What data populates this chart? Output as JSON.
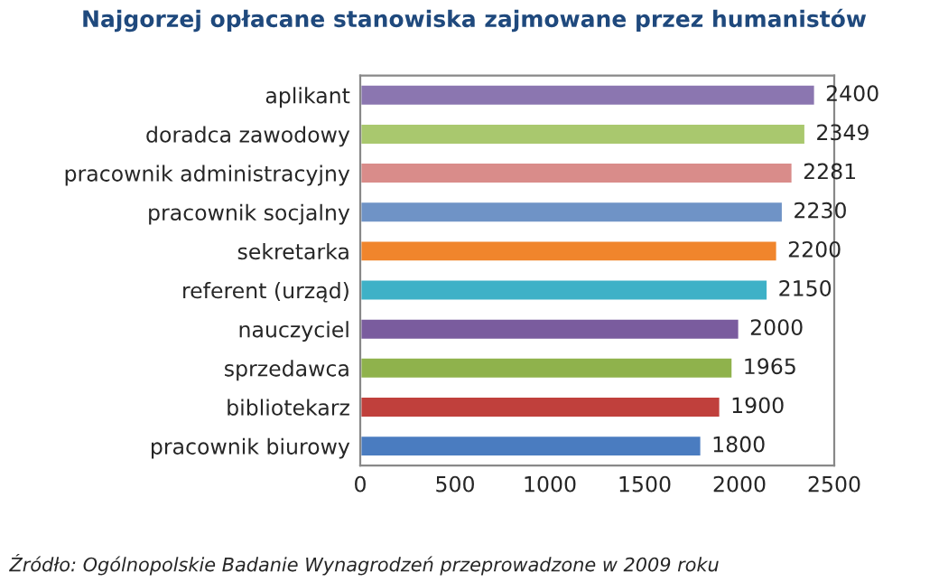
{
  "chart_data": {
    "type": "bar",
    "orientation": "horizontal",
    "title": "Najgorzej opłacane stanowiska zajmowane przez humanistów",
    "categories": [
      "aplikant",
      "doradca zawodowy",
      "pracownik administracyjny",
      "pracownik socjalny",
      "sekretarka",
      "referent (urząd)",
      "nauczyciel",
      "sprzedawca",
      "bibliotekarz",
      "pracownik biurowy"
    ],
    "values": [
      2400,
      2349,
      2281,
      2230,
      2200,
      2150,
      2000,
      1965,
      1900,
      1800
    ],
    "colors": [
      "#8b76b0",
      "#a9c86e",
      "#d98c8a",
      "#6f93c6",
      "#f0852c",
      "#3eb1c7",
      "#7a5c9e",
      "#8fb24c",
      "#c0403c",
      "#4a7cc0"
    ],
    "xlim": [
      0,
      2500
    ],
    "xticks": [
      0,
      500,
      1000,
      1500,
      2000,
      2500
    ],
    "data_labels": true,
    "grid": false,
    "legend": false,
    "annotations": [
      "Źródło: Ogólnopolskie Badanie Wynagrodzeń przeprowadzone w 2009 roku"
    ]
  }
}
